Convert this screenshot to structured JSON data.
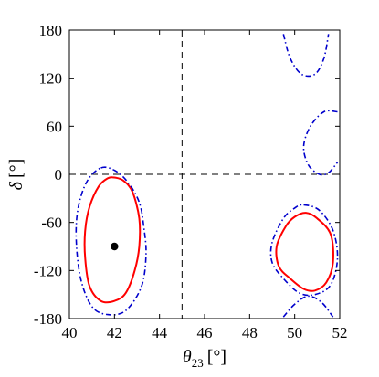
{
  "chart_data": {
    "type": "line",
    "title": "",
    "xlabel": {
      "symbol": "θ",
      "subscript": "23",
      "unit": "[°]"
    },
    "ylabel": {
      "symbol": "δ",
      "unit": "[°]"
    },
    "xlim": [
      40,
      52
    ],
    "ylim": [
      -180,
      180
    ],
    "x_ticks": [
      40,
      42,
      44,
      46,
      48,
      50,
      52
    ],
    "y_ticks": [
      -180,
      -120,
      -60,
      0,
      60,
      120,
      180
    ],
    "grid": false,
    "legend": "none",
    "reference_lines": [
      {
        "orientation": "vertical",
        "x": 45,
        "style": "dashed",
        "color": "#000000"
      },
      {
        "orientation": "horizontal",
        "y": 0,
        "style": "dashed",
        "color": "#000000"
      }
    ],
    "best_fit_point": {
      "x": 42.0,
      "y": -90
    },
    "series": [
      {
        "style": "solid",
        "color": "#ff0000",
        "contours": [
          [
            [
              42.0,
              -4
            ],
            [
              42.4,
              -8
            ],
            [
              42.8,
              -22
            ],
            [
              43.1,
              -55
            ],
            [
              43.1,
              -90
            ],
            [
              42.9,
              -120
            ],
            [
              42.5,
              -148
            ],
            [
              42.0,
              -158
            ],
            [
              41.4,
              -158
            ],
            [
              40.9,
              -140
            ],
            [
              40.7,
              -105
            ],
            [
              40.7,
              -70
            ],
            [
              40.9,
              -40
            ],
            [
              41.3,
              -15
            ],
            [
              41.7,
              -5
            ],
            [
              42.0,
              -4
            ]
          ],
          [
            [
              50.5,
              -48
            ],
            [
              51.0,
              -55
            ],
            [
              51.6,
              -75
            ],
            [
              51.7,
              -110
            ],
            [
              51.4,
              -135
            ],
            [
              50.9,
              -145
            ],
            [
              50.4,
              -143
            ],
            [
              49.8,
              -130
            ],
            [
              49.3,
              -115
            ],
            [
              49.2,
              -90
            ],
            [
              49.6,
              -65
            ],
            [
              50.0,
              -53
            ],
            [
              50.5,
              -48
            ]
          ]
        ]
      },
      {
        "style": "dash-dot",
        "color": "#0000cc",
        "contours": [
          [
            [
              41.4,
              8
            ],
            [
              42.0,
              5
            ],
            [
              42.6,
              -10
            ],
            [
              43.1,
              -35
            ],
            [
              43.3,
              -65
            ],
            [
              43.4,
              -100
            ],
            [
              43.2,
              -140
            ],
            [
              42.5,
              -170
            ],
            [
              41.7,
              -175
            ],
            [
              41.0,
              -165
            ],
            [
              40.5,
              -130
            ],
            [
              40.3,
              -80
            ],
            [
              40.4,
              -40
            ],
            [
              40.8,
              -8
            ],
            [
              41.4,
              8
            ]
          ],
          [
            [
              50.4,
              -38
            ],
            [
              51.1,
              -45
            ],
            [
              51.7,
              -70
            ],
            [
              51.9,
              -105
            ],
            [
              51.6,
              -138
            ],
            [
              50.9,
              -150
            ],
            [
              50.2,
              -148
            ],
            [
              49.5,
              -130
            ],
            [
              49.0,
              -110
            ],
            [
              49.0,
              -85
            ],
            [
              49.5,
              -55
            ],
            [
              50.0,
              -42
            ],
            [
              50.4,
              -38
            ]
          ],
          [
            [
              49.5,
              175
            ],
            [
              49.8,
              145
            ],
            [
              50.3,
              125
            ],
            [
              50.9,
              125
            ],
            [
              51.3,
              145
            ],
            [
              51.5,
              175
            ]
          ],
          [
            [
              51.9,
              78
            ],
            [
              51.3,
              78
            ],
            [
              50.7,
              60
            ],
            [
              50.4,
              35
            ],
            [
              50.6,
              12
            ],
            [
              51.1,
              0
            ],
            [
              51.5,
              2
            ],
            [
              51.9,
              15
            ]
          ],
          [
            [
              49.5,
              -178
            ],
            [
              50.0,
              -162
            ],
            [
              50.6,
              -152
            ],
            [
              51.2,
              -160
            ],
            [
              51.7,
              -178
            ]
          ]
        ]
      }
    ]
  }
}
